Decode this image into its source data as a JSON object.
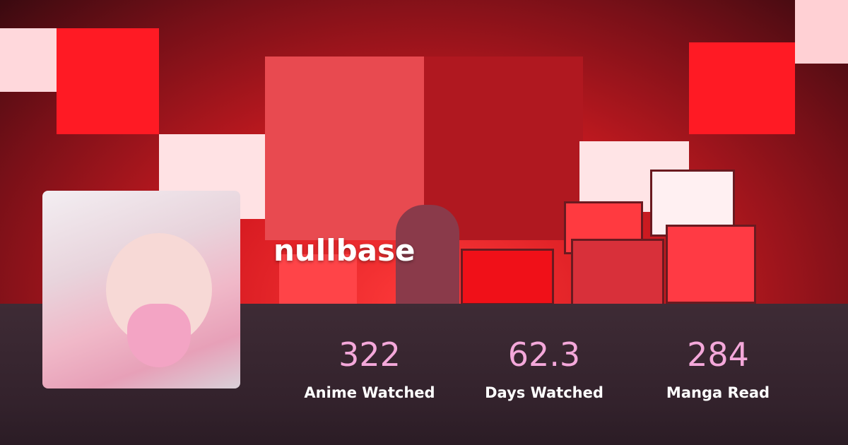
{
  "profile": {
    "username": "nullbase",
    "stats": [
      {
        "value": "322",
        "label": "Anime Watched"
      },
      {
        "value": "62.3",
        "label": "Days Watched"
      },
      {
        "value": "284",
        "label": "Manga Read"
      }
    ]
  },
  "colors": {
    "accent": "#f4a8da",
    "panel": "#3e2b35",
    "banner": "#e0141c"
  }
}
